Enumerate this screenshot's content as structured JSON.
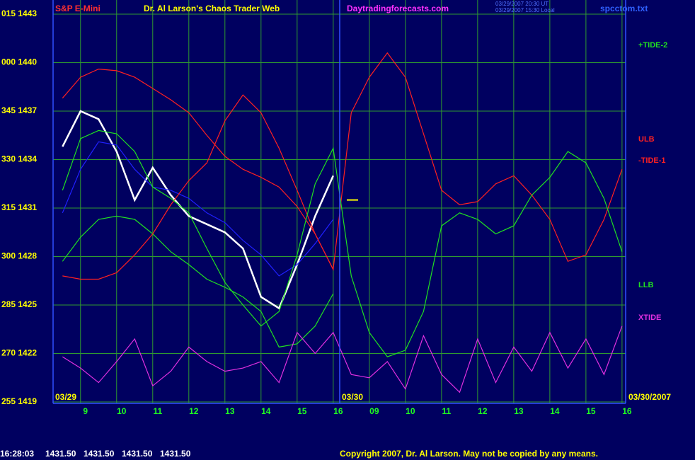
{
  "chart_data": {
    "type": "line",
    "title": "Dr. Al Larson's Chaos Trader Web",
    "symbol": "S&P E-Mini",
    "site": "Daytradingforecasts.com",
    "timestamps": [
      "03/29/2007 20:30 UT",
      "03/29/2007 15:30 Local"
    ],
    "file": "spcctom.txt",
    "dates": [
      "03/29",
      "03/30",
      "03/30/2007"
    ],
    "quote": [
      "16:28:03",
      "1431.50",
      "1431.50",
      "1431.50",
      "1431.50"
    ],
    "copyright": "Copyright 2007, Dr. Al Larson. May not be copied by any means.",
    "last_marker": 1431.5,
    "xlim": [
      8.24,
      24.1
    ],
    "xticks": [
      9,
      10,
      11,
      12,
      13,
      14,
      15,
      16,
      {
        "value": 17,
        "label": "09"
      },
      {
        "value": 18,
        "label": "10"
      },
      {
        "value": 19,
        "label": "11"
      },
      {
        "value": 20,
        "label": "12"
      },
      {
        "value": 21,
        "label": "13"
      },
      {
        "value": 22,
        "label": "14"
      },
      {
        "value": 23,
        "label": "15"
      },
      {
        "value": 24,
        "label": "16"
      }
    ],
    "ylim": [
      1419,
      1443
    ],
    "yticks": [
      {
        "value": 1419,
        "label": "255 1419"
      },
      {
        "value": 1422,
        "label": "270 1422"
      },
      {
        "value": 1425,
        "label": "285 1425"
      },
      {
        "value": 1428,
        "label": "300 1428"
      },
      {
        "value": 1431,
        "label": "315 1431"
      },
      {
        "value": 1434,
        "label": "330 1434"
      },
      {
        "value": 1437,
        "label": "345 1437"
      },
      {
        "value": 1440,
        "label": "000 1440"
      },
      {
        "value": 1443,
        "label": "015 1443"
      }
    ],
    "grid": true,
    "x": [
      8.5,
      9,
      9.5,
      10,
      10.5,
      11,
      11.5,
      12,
      12.5,
      13,
      13.5,
      14,
      14.5,
      15,
      15.5,
      16,
      16.5,
      17,
      17.5,
      18,
      18.5,
      19,
      19.5,
      20,
      20.5,
      21,
      21.5,
      22,
      22.5,
      23,
      23.5,
      24
    ],
    "series": [
      {
        "color": "#ffffff",
        "values": [
          1434.8,
          1437.0,
          1436.5,
          1434.5,
          1431.5,
          1433.5,
          1431.8,
          1430.5,
          1430.0,
          1429.5,
          1428.5,
          1425.5,
          1424.8,
          1427.5,
          1430.5,
          1433.0,
          null,
          null,
          null,
          null,
          null,
          null,
          null,
          null,
          null,
          null,
          null,
          null,
          null,
          null,
          null,
          null
        ]
      },
      {
        "color": "#2020ff",
        "values": [
          1430.7,
          1433.4,
          1435.1,
          1434.9,
          1433.4,
          1432.3,
          1432.1,
          1431.6,
          1430.7,
          1430.1,
          1429.0,
          1428.1,
          1426.8,
          1427.5,
          1428.8,
          1430.3,
          null,
          null,
          null,
          null,
          null,
          null,
          null,
          null,
          null,
          null,
          null,
          null,
          null,
          null,
          null,
          null
        ]
      },
      {
        "name": "ULB",
        "color": "#ff2020",
        "values": [
          1437.8,
          1439.1,
          1439.6,
          1439.5,
          1439.1,
          1438.4,
          1437.7,
          1436.9,
          1435.5,
          1434.2,
          1433.4,
          1432.9,
          1432.3,
          1431.1,
          1429.4,
          1427.2,
          null,
          null,
          null,
          null,
          null,
          null,
          null,
          null,
          null,
          null,
          null,
          null,
          null,
          null,
          null,
          null
        ]
      },
      {
        "name": "LLB",
        "color": "#20e020",
        "values": [
          1427.7,
          1429.2,
          1430.3,
          1430.5,
          1430.3,
          1429.4,
          1428.3,
          1427.5,
          1426.6,
          1426.1,
          1425.5,
          1424.6,
          1422.4,
          1422.6,
          1423.7,
          1425.7,
          null,
          null,
          null,
          null,
          null,
          null,
          null,
          null,
          null,
          null,
          null,
          null,
          null,
          null,
          null,
          null
        ]
      },
      {
        "name": "-TIDE-1",
        "color": "#ff2020",
        "values": [
          1426.8,
          1426.6,
          1426.6,
          1427.0,
          1428.1,
          1429.4,
          1431.2,
          1432.7,
          1433.8,
          1436.4,
          1438.0,
          1436.9,
          1434.7,
          1432.1,
          1429.4,
          1427.2,
          1436.9,
          1439.1,
          1440.6,
          1439.1,
          1435.6,
          1432.1,
          1431.2,
          1431.4,
          1432.5,
          1433.0,
          1431.8,
          1430.3,
          1427.7,
          1428.1,
          1430.3,
          1433.4
        ]
      },
      {
        "name": "+TIDE-2",
        "color": "#20e020",
        "values": [
          1432.1,
          1435.3,
          1435.8,
          1435.6,
          1434.5,
          1432.3,
          1431.6,
          1430.7,
          1428.5,
          1426.4,
          1425.0,
          1423.7,
          1424.6,
          1428.1,
          1432.5,
          1434.7,
          1426.8,
          1423.3,
          1421.8,
          1422.2,
          1424.6,
          1429.9,
          1430.7,
          1430.3,
          1429.4,
          1429.9,
          1431.8,
          1432.9,
          1434.5,
          1433.8,
          1431.6,
          1428.3
        ]
      },
      {
        "name": "XTIDE",
        "color": "#e030e0",
        "values": [
          1421.8,
          1421.1,
          1420.2,
          1421.5,
          1422.9,
          1420.0,
          1420.9,
          1422.4,
          1421.5,
          1420.9,
          1421.1,
          1421.5,
          1420.2,
          1423.3,
          1422.0,
          1423.3,
          1420.7,
          1420.5,
          1421.5,
          1419.8,
          1423.1,
          1420.7,
          1419.6,
          1422.9,
          1420.2,
          1422.4,
          1420.9,
          1423.3,
          1421.1,
          1422.9,
          1420.7,
          1423.7
        ]
      }
    ]
  }
}
